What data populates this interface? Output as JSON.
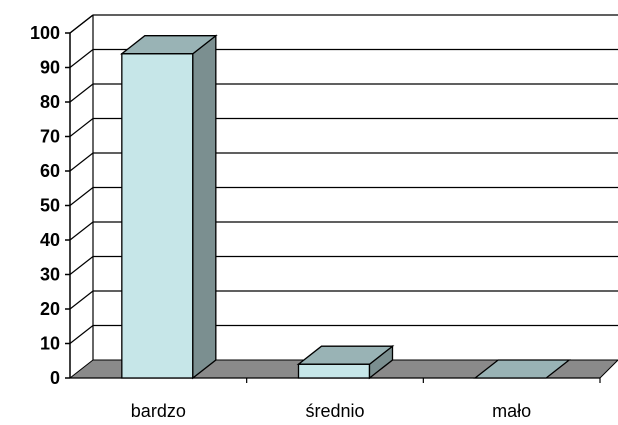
{
  "chart_data": {
    "type": "bar",
    "style": "3d-column",
    "categories": [
      "bardzo",
      "średnio",
      "mało"
    ],
    "values": [
      94,
      4,
      0
    ],
    "ylim": [
      0,
      100
    ],
    "yticks": [
      0,
      10,
      20,
      30,
      40,
      50,
      60,
      70,
      80,
      90,
      100
    ],
    "grid": true,
    "legend": false,
    "colors": {
      "bar_front": "#c6e6e8",
      "bar_top": "#99b3b5",
      "bar_side": "#7b8f90",
      "floor": "#8a8a8a",
      "grid": "#000000"
    }
  }
}
